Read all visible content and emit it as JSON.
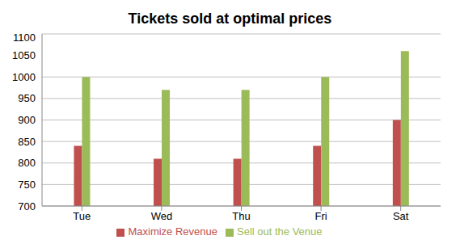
{
  "chart_data": {
    "type": "bar",
    "title": "Tickets sold at optimal prices",
    "categories": [
      "Tue",
      "Wed",
      "Thu",
      "Fri",
      "Sat"
    ],
    "series": [
      {
        "name": "Maximize Revenue",
        "color": "#c0504d",
        "values": [
          840,
          810,
          810,
          840,
          900
        ]
      },
      {
        "name": "Sell out the Venue",
        "color": "#9bbb59",
        "values": [
          1000,
          970,
          970,
          1000,
          1060
        ]
      }
    ],
    "ylim": [
      700,
      1100
    ],
    "yticks": [
      700,
      750,
      800,
      850,
      900,
      950,
      1000,
      1050,
      1100
    ],
    "grid": true,
    "legend": "bottom"
  }
}
